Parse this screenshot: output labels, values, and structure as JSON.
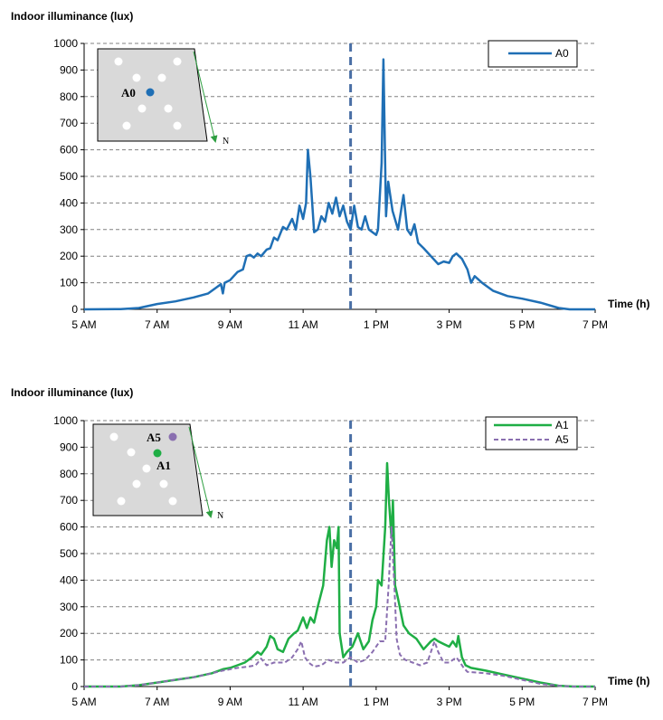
{
  "chart_data": [
    {
      "type": "line",
      "ylabel": "Indoor illuminance (lux)",
      "xlabel": "Time (h)",
      "ylim": [
        0,
        1000
      ],
      "yticks": [
        0,
        100,
        200,
        300,
        400,
        500,
        600,
        700,
        800,
        900,
        1000
      ],
      "xlim": [
        5,
        19
      ],
      "xticks": [
        {
          "value": 5,
          "label": "5 AM"
        },
        {
          "value": 7,
          "label": "7 AM"
        },
        {
          "value": 9,
          "label": "9 AM"
        },
        {
          "value": 11,
          "label": "11 AM"
        },
        {
          "value": 13,
          "label": "1 PM"
        },
        {
          "value": 15,
          "label": "3 PM"
        },
        {
          "value": 17,
          "label": "5 PM"
        },
        {
          "value": 19,
          "label": "7 PM"
        }
      ],
      "grid": "horizontal dashed",
      "legend_position": "top-right",
      "vline_x": 12.3,
      "inset": {
        "point_labels": [
          "A0"
        ],
        "north_label": "N"
      },
      "series": [
        {
          "name": "A0",
          "color": "#1f6fb5",
          "dash": "solid",
          "points": [
            [
              5,
              0
            ],
            [
              6.0,
              1
            ],
            [
              6.5,
              5
            ],
            [
              7.0,
              20
            ],
            [
              7.5,
              30
            ],
            [
              8.0,
              45
            ],
            [
              8.4,
              60
            ],
            [
              8.6,
              80
            ],
            [
              8.75,
              95
            ],
            [
              8.8,
              60
            ],
            [
              8.85,
              100
            ],
            [
              9.0,
              110
            ],
            [
              9.2,
              140
            ],
            [
              9.35,
              150
            ],
            [
              9.45,
              200
            ],
            [
              9.55,
              205
            ],
            [
              9.65,
              195
            ],
            [
              9.75,
              210
            ],
            [
              9.85,
              200
            ],
            [
              10.0,
              225
            ],
            [
              10.1,
              230
            ],
            [
              10.2,
              270
            ],
            [
              10.3,
              260
            ],
            [
              10.45,
              310
            ],
            [
              10.55,
              300
            ],
            [
              10.7,
              340
            ],
            [
              10.8,
              300
            ],
            [
              10.9,
              390
            ],
            [
              11.0,
              340
            ],
            [
              11.08,
              400
            ],
            [
              11.13,
              600
            ],
            [
              11.2,
              500
            ],
            [
              11.3,
              290
            ],
            [
              11.4,
              300
            ],
            [
              11.5,
              350
            ],
            [
              11.6,
              330
            ],
            [
              11.7,
              400
            ],
            [
              11.8,
              360
            ],
            [
              11.9,
              420
            ],
            [
              12.0,
              350
            ],
            [
              12.1,
              390
            ],
            [
              12.2,
              330
            ],
            [
              12.3,
              300
            ],
            [
              12.4,
              390
            ],
            [
              12.5,
              310
            ],
            [
              12.6,
              300
            ],
            [
              12.7,
              350
            ],
            [
              12.8,
              300
            ],
            [
              12.9,
              290
            ],
            [
              13.0,
              280
            ],
            [
              13.05,
              300
            ],
            [
              13.15,
              550
            ],
            [
              13.2,
              940
            ],
            [
              13.27,
              350
            ],
            [
              13.33,
              480
            ],
            [
              13.45,
              370
            ],
            [
              13.6,
              300
            ],
            [
              13.75,
              430
            ],
            [
              13.85,
              300
            ],
            [
              13.95,
              280
            ],
            [
              14.05,
              320
            ],
            [
              14.15,
              250
            ],
            [
              14.3,
              230
            ],
            [
              14.5,
              200
            ],
            [
              14.7,
              170
            ],
            [
              14.85,
              180
            ],
            [
              15.0,
              175
            ],
            [
              15.1,
              200
            ],
            [
              15.2,
              210
            ],
            [
              15.35,
              190
            ],
            [
              15.5,
              150
            ],
            [
              15.6,
              100
            ],
            [
              15.7,
              125
            ],
            [
              15.9,
              100
            ],
            [
              16.2,
              70
            ],
            [
              16.6,
              50
            ],
            [
              17.0,
              40
            ],
            [
              17.5,
              25
            ],
            [
              18.0,
              5
            ],
            [
              18.3,
              0
            ],
            [
              19.0,
              0
            ]
          ]
        }
      ]
    },
    {
      "type": "line",
      "ylabel": "Indoor illuminance (lux)",
      "xlabel": "Time (h)",
      "ylim": [
        0,
        1000
      ],
      "yticks": [
        0,
        100,
        200,
        300,
        400,
        500,
        600,
        700,
        800,
        900,
        1000
      ],
      "xlim": [
        5,
        19
      ],
      "xticks": [
        {
          "value": 5,
          "label": "5 AM"
        },
        {
          "value": 7,
          "label": "7 AM"
        },
        {
          "value": 9,
          "label": "9 AM"
        },
        {
          "value": 11,
          "label": "11 AM"
        },
        {
          "value": 13,
          "label": "1 PM"
        },
        {
          "value": 15,
          "label": "3 PM"
        },
        {
          "value": 17,
          "label": "5 PM"
        },
        {
          "value": 19,
          "label": "7 PM"
        }
      ],
      "grid": "horizontal dashed",
      "legend_position": "top-right",
      "vline_x": 12.3,
      "inset": {
        "point_labels": [
          "A5",
          "A1"
        ],
        "north_label": "N"
      },
      "series": [
        {
          "name": "A1",
          "color": "#1fae45",
          "dash": "solid",
          "points": [
            [
              5,
              0
            ],
            [
              6.0,
              0
            ],
            [
              6.5,
              5
            ],
            [
              7.0,
              15
            ],
            [
              7.5,
              25
            ],
            [
              8.0,
              35
            ],
            [
              8.5,
              50
            ],
            [
              8.8,
              65
            ],
            [
              9.0,
              70
            ],
            [
              9.2,
              80
            ],
            [
              9.4,
              90
            ],
            [
              9.6,
              110
            ],
            [
              9.75,
              130
            ],
            [
              9.85,
              120
            ],
            [
              10.0,
              150
            ],
            [
              10.1,
              190
            ],
            [
              10.2,
              180
            ],
            [
              10.3,
              140
            ],
            [
              10.45,
              130
            ],
            [
              10.6,
              180
            ],
            [
              10.75,
              200
            ],
            [
              10.85,
              210
            ],
            [
              11.0,
              260
            ],
            [
              11.1,
              220
            ],
            [
              11.2,
              260
            ],
            [
              11.3,
              240
            ],
            [
              11.4,
              300
            ],
            [
              11.55,
              380
            ],
            [
              11.65,
              550
            ],
            [
              11.72,
              600
            ],
            [
              11.78,
              450
            ],
            [
              11.85,
              550
            ],
            [
              11.92,
              520
            ],
            [
              11.97,
              600
            ],
            [
              12.0,
              200
            ],
            [
              12.1,
              110
            ],
            [
              12.2,
              130
            ],
            [
              12.35,
              150
            ],
            [
              12.5,
              200
            ],
            [
              12.65,
              140
            ],
            [
              12.8,
              170
            ],
            [
              12.9,
              250
            ],
            [
              13.0,
              300
            ],
            [
              13.05,
              400
            ],
            [
              13.15,
              380
            ],
            [
              13.25,
              600
            ],
            [
              13.3,
              840
            ],
            [
              13.35,
              700
            ],
            [
              13.42,
              560
            ],
            [
              13.46,
              700
            ],
            [
              13.52,
              380
            ],
            [
              13.6,
              330
            ],
            [
              13.75,
              230
            ],
            [
              13.9,
              200
            ],
            [
              14.1,
              180
            ],
            [
              14.3,
              140
            ],
            [
              14.5,
              170
            ],
            [
              14.6,
              180
            ],
            [
              14.7,
              170
            ],
            [
              14.85,
              160
            ],
            [
              15.0,
              150
            ],
            [
              15.1,
              170
            ],
            [
              15.2,
              150
            ],
            [
              15.25,
              190
            ],
            [
              15.35,
              110
            ],
            [
              15.45,
              80
            ],
            [
              15.6,
              70
            ],
            [
              16.0,
              60
            ],
            [
              16.5,
              45
            ],
            [
              17.0,
              30
            ],
            [
              17.5,
              15
            ],
            [
              18.0,
              3
            ],
            [
              18.4,
              0
            ],
            [
              19.0,
              0
            ]
          ]
        },
        {
          "name": "A5",
          "color": "#8a6fb0",
          "dash": "dashed",
          "points": [
            [
              5,
              0
            ],
            [
              6.0,
              0
            ],
            [
              6.5,
              5
            ],
            [
              7.0,
              15
            ],
            [
              7.5,
              25
            ],
            [
              8.0,
              35
            ],
            [
              8.5,
              50
            ],
            [
              8.8,
              60
            ],
            [
              9.0,
              65
            ],
            [
              9.2,
              70
            ],
            [
              9.5,
              75
            ],
            [
              9.7,
              80
            ],
            [
              9.85,
              105
            ],
            [
              10.0,
              80
            ],
            [
              10.2,
              90
            ],
            [
              10.5,
              90
            ],
            [
              10.7,
              110
            ],
            [
              10.85,
              140
            ],
            [
              10.95,
              170
            ],
            [
              11.05,
              110
            ],
            [
              11.15,
              90
            ],
            [
              11.3,
              75
            ],
            [
              11.5,
              80
            ],
            [
              11.7,
              100
            ],
            [
              11.9,
              90
            ],
            [
              12.1,
              90
            ],
            [
              12.3,
              110
            ],
            [
              12.5,
              90
            ],
            [
              12.7,
              100
            ],
            [
              12.9,
              130
            ],
            [
              13.1,
              170
            ],
            [
              13.25,
              170
            ],
            [
              13.35,
              400
            ],
            [
              13.42,
              600
            ],
            [
              13.5,
              380
            ],
            [
              13.56,
              180
            ],
            [
              13.65,
              120
            ],
            [
              13.8,
              100
            ],
            [
              14.0,
              90
            ],
            [
              14.2,
              80
            ],
            [
              14.4,
              90
            ],
            [
              14.6,
              170
            ],
            [
              14.7,
              130
            ],
            [
              14.85,
              90
            ],
            [
              15.0,
              90
            ],
            [
              15.1,
              100
            ],
            [
              15.2,
              110
            ],
            [
              15.3,
              90
            ],
            [
              15.4,
              70
            ],
            [
              15.5,
              55
            ],
            [
              16.0,
              50
            ],
            [
              16.5,
              40
            ],
            [
              17.0,
              25
            ],
            [
              17.5,
              10
            ],
            [
              18.0,
              3
            ],
            [
              18.4,
              0
            ],
            [
              19.0,
              0
            ]
          ]
        }
      ]
    }
  ]
}
